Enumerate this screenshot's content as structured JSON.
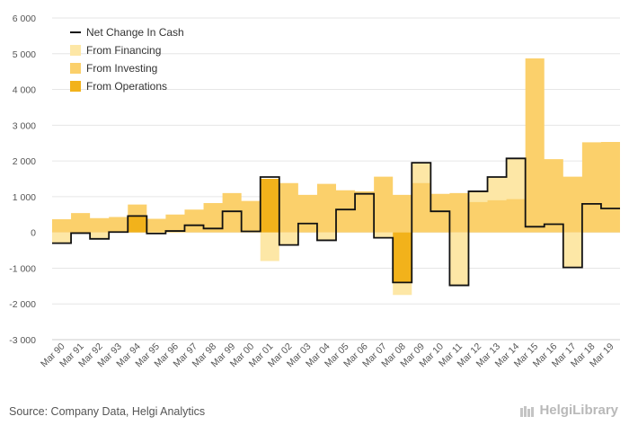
{
  "source_text": "Source: Company Data, Helgi Analytics",
  "brand_text": "HelgiLibrary",
  "colors": {
    "net": "#111111",
    "financing": "#fde7a6",
    "investing": "#fbd06b",
    "operations": "#f2b21b",
    "grid": "#e6e6e6"
  },
  "chart_data": {
    "type": "area",
    "title": "",
    "xlabel": "",
    "ylabel": "",
    "ylim": [
      -3000,
      6000
    ],
    "y_ticks": [
      -3000,
      -2000,
      -1000,
      0,
      1000,
      2000,
      3000,
      4000,
      5000,
      6000
    ],
    "y_tick_labels": [
      "-3 000",
      "-2 000",
      "-1 000",
      "0",
      "1 000",
      "2 000",
      "3 000",
      "4 000",
      "5 000",
      "6 000"
    ],
    "x_tick_labels": [
      "Mar 90",
      "Mar 91",
      "Mar 92",
      "Mar 93",
      "Mar 94",
      "Mar 95",
      "Mar 96",
      "Mar 97",
      "Mar 98",
      "Mar 99",
      "Mar 00",
      "Mar 01",
      "Mar 02",
      "Mar 03",
      "Mar 04",
      "Mar 05",
      "Mar 06",
      "Mar 07",
      "Mar 08",
      "Mar 09",
      "Mar 10",
      "Mar 11",
      "Mar 12",
      "Mar 13",
      "Mar 14",
      "Mar 15",
      "Mar 16",
      "Mar 17",
      "Mar 18",
      "Mar 19"
    ],
    "legend": [
      "Net Change In Cash",
      "From Financing",
      "From Investing",
      "From Operations"
    ],
    "legend_position": "top-left",
    "grid": "horizontal",
    "years": [
      1990,
      1991,
      1992,
      1993,
      1994,
      1995,
      1996,
      1997,
      1998,
      1999,
      2000,
      2001,
      2002,
      2003,
      2004,
      2005,
      2006,
      2007,
      2008,
      2009,
      2010,
      2011,
      2012,
      2013,
      2014,
      2015,
      2016,
      2017,
      2018,
      2019
    ],
    "net_change_in_cash": [
      -300,
      -20,
      -180,
      10,
      460,
      -30,
      40,
      200,
      110,
      590,
      30,
      1550,
      -350,
      250,
      -220,
      640,
      1080,
      -150,
      -1400,
      1950,
      590,
      -1480,
      1150,
      1550,
      2070,
      160,
      230,
      -980,
      800,
      670
    ],
    "from_operations": [
      0,
      0,
      0,
      0,
      450,
      0,
      0,
      0,
      0,
      0,
      0,
      1500,
      0,
      0,
      0,
      0,
      0,
      0,
      -1400,
      0,
      0,
      0,
      0,
      0,
      0,
      0,
      0,
      0,
      0,
      0
    ],
    "from_financing": [
      -300,
      -20,
      -180,
      10,
      0,
      -30,
      40,
      200,
      110,
      590,
      30,
      -800,
      -350,
      250,
      -220,
      640,
      1080,
      -150,
      -1750,
      1950,
      590,
      -1480,
      1150,
      1550,
      2070,
      160,
      230,
      -980,
      800,
      670
    ],
    "from_investing": [
      370,
      540,
      400,
      430,
      780,
      380,
      500,
      640,
      820,
      1100,
      880,
      1430,
      1380,
      1050,
      1360,
      1180,
      1150,
      1560,
      1050,
      1380,
      1080,
      1100,
      850,
      900,
      930,
      4870,
      2050,
      1560,
      2520,
      2530
    ]
  }
}
